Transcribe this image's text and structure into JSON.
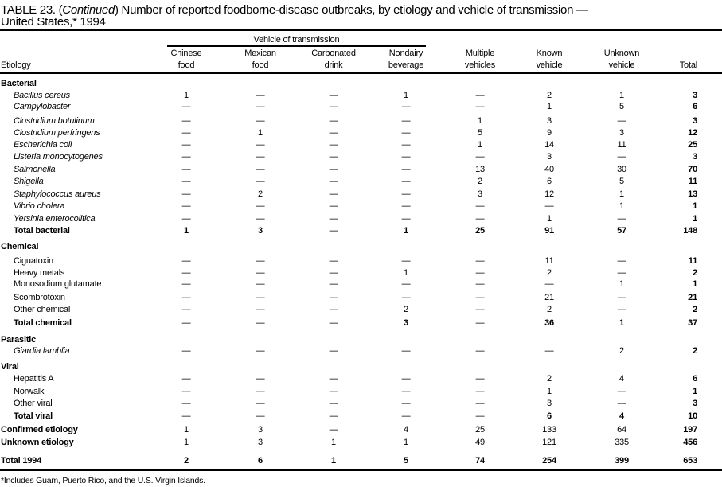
{
  "title": {
    "prefix": "TABLE 23. (",
    "continued": "Continued",
    "rest": ") Number of reported foodborne-disease  outbreaks, by etiology and vehicle of transmission —",
    "line2": "United States,* 1994"
  },
  "header": {
    "group_label": "Vehicle of transmission",
    "etiology": "Etiology",
    "columns": [
      [
        "Chinese",
        "food"
      ],
      [
        "Mexican",
        "food"
      ],
      [
        "Carbonated",
        "drink"
      ],
      [
        "Nondairy",
        "beverage"
      ],
      [
        "Multiple",
        "vehicles"
      ],
      [
        "Known",
        "vehicle"
      ],
      [
        "Unknown",
        "vehicle"
      ],
      [
        "",
        "Total"
      ]
    ]
  },
  "rows": [
    {
      "label": "Bacterial",
      "type": "section"
    },
    {
      "label": "Bacillus cereus",
      "type": "italic",
      "values": [
        "1",
        "—",
        "—",
        "1",
        "—",
        "2",
        "1",
        "3"
      ]
    },
    {
      "label": "Campylobacter",
      "type": "italic",
      "values": [
        "—",
        "—",
        "—",
        "—",
        "—",
        "1",
        "5",
        "6"
      ]
    },
    {
      "label": "Clostridium botulinum",
      "type": "italic",
      "values": [
        "—",
        "—",
        "—",
        "—",
        "1",
        "3",
        "—",
        "3"
      ]
    },
    {
      "label": "Clostridium perfringens",
      "type": "italic",
      "values": [
        "—",
        "1",
        "—",
        "—",
        "5",
        "9",
        "3",
        "12"
      ]
    },
    {
      "label": "Escherichia coli",
      "type": "italic",
      "values": [
        "—",
        "—",
        "—",
        "—",
        "1",
        "14",
        "11",
        "25"
      ]
    },
    {
      "label": "Listeria monocytogenes",
      "type": "italic",
      "values": [
        "—",
        "—",
        "—",
        "—",
        "—",
        "3",
        "—",
        "3"
      ]
    },
    {
      "label": "Salmonella",
      "type": "italic",
      "values": [
        "—",
        "—",
        "—",
        "—",
        "13",
        "40",
        "30",
        "70"
      ]
    },
    {
      "label": "Shigella",
      "type": "italic",
      "values": [
        "—",
        "—",
        "—",
        "—",
        "2",
        "6",
        "5",
        "11"
      ]
    },
    {
      "label": "Staphylococcus aureus",
      "type": "italic",
      "values": [
        "—",
        "2",
        "—",
        "—",
        "3",
        "12",
        "1",
        "13"
      ]
    },
    {
      "label": "Vibrio cholera",
      "type": "italic",
      "values": [
        "—",
        "—",
        "—",
        "—",
        "—",
        "—",
        "1",
        "1"
      ]
    },
    {
      "label": "Yersinia enterocolitica",
      "type": "italic",
      "values": [
        "—",
        "—",
        "—",
        "—",
        "—",
        "1",
        "—",
        "1"
      ]
    },
    {
      "label": "Total bacterial",
      "type": "subtotal",
      "values": [
        "1",
        "3",
        "—",
        "1",
        "25",
        "91",
        "57",
        "148"
      ]
    },
    {
      "label": "Chemical",
      "type": "section"
    },
    {
      "label": "Ciguatoxin",
      "type": "item",
      "values": [
        "—",
        "—",
        "—",
        "—",
        "—",
        "11",
        "—",
        "11"
      ]
    },
    {
      "label": "Heavy metals",
      "type": "item",
      "values": [
        "—",
        "—",
        "—",
        "1",
        "—",
        "2",
        "—",
        "2"
      ]
    },
    {
      "label": "Monosodium glutamate",
      "type": "item",
      "values": [
        "—",
        "—",
        "—",
        "—",
        "—",
        "—",
        "1",
        "1"
      ]
    },
    {
      "label": "Scombrotoxin",
      "type": "item",
      "values": [
        "—",
        "—",
        "—",
        "—",
        "—",
        "21",
        "—",
        "21"
      ]
    },
    {
      "label": "Other chemical",
      "type": "item",
      "values": [
        "—",
        "—",
        "—",
        "2",
        "—",
        "2",
        "—",
        "2"
      ]
    },
    {
      "label": "Total chemical",
      "type": "subtotal",
      "values": [
        "—",
        "—",
        "—",
        "3",
        "—",
        "36",
        "1",
        "37"
      ]
    },
    {
      "label": "Parasitic",
      "type": "section"
    },
    {
      "label": "Giardia lamblia",
      "type": "italic",
      "values": [
        "—",
        "—",
        "—",
        "—",
        "—",
        "—",
        "2",
        "2"
      ]
    },
    {
      "label": "Viral",
      "type": "section"
    },
    {
      "label": "Hepatitis A",
      "type": "item",
      "values": [
        "—",
        "—",
        "—",
        "—",
        "—",
        "2",
        "4",
        "6"
      ]
    },
    {
      "label": "Norwalk",
      "type": "item",
      "values": [
        "—",
        "—",
        "—",
        "—",
        "—",
        "1",
        "—",
        "1"
      ]
    },
    {
      "label": "Other viral",
      "type": "item",
      "values": [
        "—",
        "—",
        "—",
        "—",
        "—",
        "3",
        "—",
        "3"
      ]
    },
    {
      "label": "Total viral",
      "type": "subtotal",
      "values": [
        "—",
        "—",
        "—",
        "—",
        "—",
        "6",
        "4",
        "10"
      ]
    },
    {
      "label": "Confirmed etiology",
      "type": "summary",
      "values": [
        "1",
        "3",
        "—",
        "4",
        "25",
        "133",
        "64",
        "197"
      ]
    },
    {
      "label": "Unknown etiology",
      "type": "summary",
      "values": [
        "1",
        "3",
        "1",
        "1",
        "49",
        "121",
        "335",
        "456"
      ]
    },
    {
      "label": "Total 1994",
      "type": "grandtotal",
      "values": [
        "2",
        "6",
        "1",
        "5",
        "74",
        "254",
        "399",
        "653"
      ]
    }
  ],
  "footnote": "*Includes Guam, Puerto Rico, and the U.S. Virgin Islands."
}
